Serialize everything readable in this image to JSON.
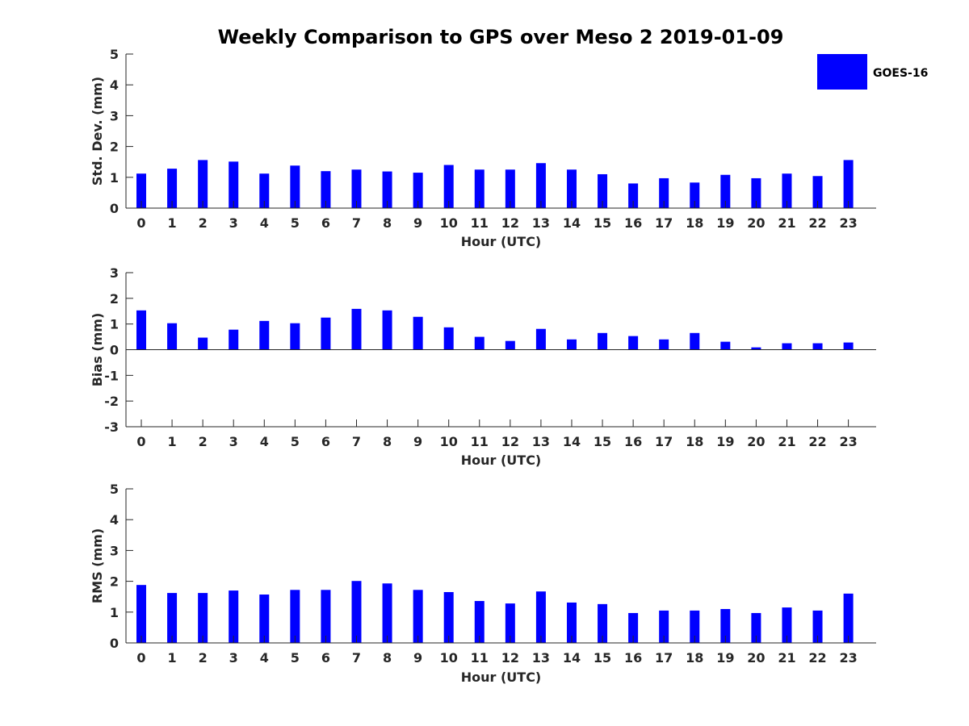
{
  "title": "Weekly Comparison to GPS over Meso 2 2019-01-09",
  "legend": {
    "label": "GOES-16",
    "color": "#0000ff"
  },
  "chart_data": [
    {
      "type": "bar",
      "id": "std",
      "series_name": "GOES-16",
      "color": "#0000ff",
      "categories": [
        "0",
        "1",
        "2",
        "3",
        "4",
        "5",
        "6",
        "7",
        "8",
        "9",
        "10",
        "11",
        "12",
        "13",
        "14",
        "15",
        "16",
        "17",
        "18",
        "19",
        "20",
        "21",
        "22",
        "23"
      ],
      "values": [
        1.12,
        1.28,
        1.56,
        1.51,
        1.12,
        1.38,
        1.2,
        1.25,
        1.19,
        1.15,
        1.4,
        1.25,
        1.25,
        1.46,
        1.25,
        1.1,
        0.8,
        0.97,
        0.83,
        1.08,
        0.97,
        1.12,
        1.04,
        1.56
      ],
      "xlabel": "Hour (UTC)",
      "ylabel": "Std. Dev. (mm)",
      "ylim": [
        0,
        5
      ],
      "yticks": [
        "0",
        "1",
        "2",
        "3",
        "4",
        "5"
      ]
    },
    {
      "type": "bar",
      "id": "bias",
      "series_name": "GOES-16",
      "color": "#0000ff",
      "categories": [
        "0",
        "1",
        "2",
        "3",
        "4",
        "5",
        "6",
        "7",
        "8",
        "9",
        "10",
        "11",
        "12",
        "13",
        "14",
        "15",
        "16",
        "17",
        "18",
        "19",
        "20",
        "21",
        "22",
        "23"
      ],
      "values": [
        1.53,
        1.03,
        0.47,
        0.78,
        1.12,
        1.03,
        1.25,
        1.59,
        1.53,
        1.28,
        0.87,
        0.5,
        0.34,
        0.81,
        0.4,
        0.65,
        0.53,
        0.4,
        0.65,
        0.31,
        0.09,
        0.25,
        0.25,
        0.28
      ],
      "xlabel": "Hour (UTC)",
      "ylabel": "Bias (mm)",
      "ylim": [
        -3,
        3
      ],
      "yticks": [
        "-3",
        "-2",
        "-1",
        "0",
        "1",
        "2",
        "3"
      ]
    },
    {
      "type": "bar",
      "id": "rms",
      "series_name": "GOES-16",
      "color": "#0000ff",
      "categories": [
        "0",
        "1",
        "2",
        "3",
        "4",
        "5",
        "6",
        "7",
        "8",
        "9",
        "10",
        "11",
        "12",
        "13",
        "14",
        "15",
        "16",
        "17",
        "18",
        "19",
        "20",
        "21",
        "22",
        "23"
      ],
      "values": [
        1.88,
        1.62,
        1.62,
        1.7,
        1.57,
        1.72,
        1.72,
        2.01,
        1.93,
        1.72,
        1.65,
        1.36,
        1.28,
        1.67,
        1.31,
        1.26,
        0.97,
        1.05,
        1.05,
        1.1,
        0.97,
        1.15,
        1.05,
        1.6
      ],
      "xlabel": "Hour (UTC)",
      "ylabel": "RMS (mm)",
      "ylim": [
        0,
        5
      ],
      "yticks": [
        "0",
        "1",
        "2",
        "3",
        "4",
        "5"
      ]
    }
  ]
}
